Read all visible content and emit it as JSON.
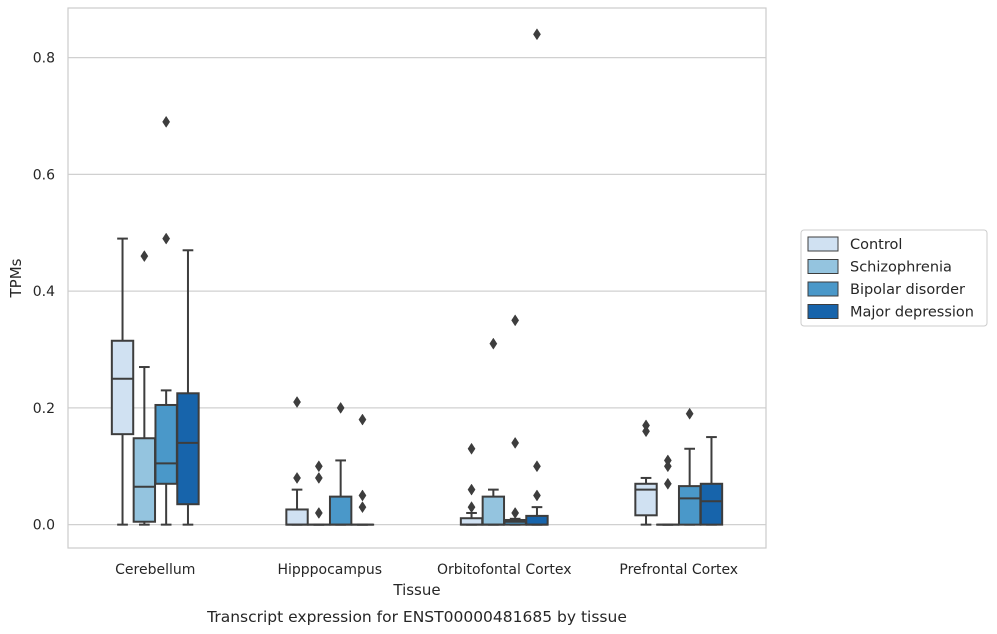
{
  "chart_data": {
    "type": "box",
    "title": "",
    "caption": "Transcript expression for ENST00000481685 by tissue",
    "xlabel": "Tissue",
    "ylabel": "TPMs",
    "ylim": [
      -0.04,
      0.885
    ],
    "yticks": [
      0.0,
      0.2,
      0.4,
      0.6,
      0.8
    ],
    "ytick_labels": [
      "0.0",
      "0.2",
      "0.4",
      "0.6",
      "0.8"
    ],
    "grid": "horizontal",
    "legend_position": "right",
    "categories": [
      "Cerebellum",
      "Hipppocampus",
      "Orbitofontal Cortex",
      "Prefrontal Cortex"
    ],
    "series": [
      {
        "name": "Control",
        "color": "#d0e1f2",
        "boxes": [
          {
            "whislo": 0.0,
            "q1": 0.155,
            "med": 0.25,
            "q3": 0.315,
            "whishi": 0.49,
            "fliers": []
          },
          {
            "whislo": 0.0,
            "q1": 0.0,
            "med": 0.0,
            "q3": 0.026,
            "whishi": 0.06,
            "fliers": [
              0.08,
              0.21
            ]
          },
          {
            "whislo": 0.0,
            "q1": 0.0,
            "med": 0.0,
            "q3": 0.011,
            "whishi": 0.02,
            "fliers": [
              0.03,
              0.06,
              0.13
            ]
          },
          {
            "whislo": 0.0,
            "q1": 0.016,
            "med": 0.06,
            "q3": 0.07,
            "whishi": 0.08,
            "fliers": [
              0.16,
              0.17
            ]
          }
        ]
      },
      {
        "name": "Schizophrenia",
        "color": "#94c4df",
        "boxes": [
          {
            "whislo": 0.0,
            "q1": 0.005,
            "med": 0.065,
            "q3": 0.148,
            "whishi": 0.27,
            "fliers": [
              0.46
            ]
          },
          {
            "whislo": 0.0,
            "q1": 0.0,
            "med": 0.0,
            "q3": 0.0,
            "whishi": 0.0,
            "fliers": [
              0.02,
              0.08,
              0.1
            ]
          },
          {
            "whislo": 0.0,
            "q1": 0.0,
            "med": 0.0,
            "q3": 0.048,
            "whishi": 0.06,
            "fliers": [
              0.31
            ]
          },
          {
            "whislo": 0.0,
            "q1": 0.0,
            "med": 0.0,
            "q3": 0.0,
            "whishi": 0.0,
            "fliers": [
              0.07,
              0.1,
              0.11
            ]
          }
        ]
      },
      {
        "name": "Bipolar disorder",
        "color": "#4a98c9",
        "boxes": [
          {
            "whislo": 0.0,
            "q1": 0.07,
            "med": 0.105,
            "q3": 0.205,
            "whishi": 0.23,
            "fliers": [
              0.49,
              0.69
            ]
          },
          {
            "whislo": 0.0,
            "q1": 0.0,
            "med": 0.0,
            "q3": 0.048,
            "whishi": 0.11,
            "fliers": [
              0.2
            ]
          },
          {
            "whislo": 0.0,
            "q1": 0.0,
            "med": 0.005,
            "q3": 0.008,
            "whishi": 0.01,
            "fliers": [
              0.02,
              0.14,
              0.35
            ]
          },
          {
            "whislo": 0.0,
            "q1": 0.0,
            "med": 0.045,
            "q3": 0.066,
            "whishi": 0.13,
            "fliers": [
              0.19
            ]
          }
        ]
      },
      {
        "name": "Major depression",
        "color": "#1764ab",
        "boxes": [
          {
            "whislo": 0.0,
            "q1": 0.035,
            "med": 0.14,
            "q3": 0.225,
            "whishi": 0.47,
            "fliers": []
          },
          {
            "whislo": 0.0,
            "q1": 0.0,
            "med": 0.0,
            "q3": 0.0,
            "whishi": 0.0,
            "fliers": [
              0.03,
              0.05,
              0.18
            ]
          },
          {
            "whislo": 0.0,
            "q1": 0.0,
            "med": 0.0,
            "q3": 0.015,
            "whishi": 0.03,
            "fliers": [
              0.05,
              0.1,
              0.84
            ]
          },
          {
            "whislo": 0.0,
            "q1": 0.0,
            "med": 0.04,
            "q3": 0.07,
            "whishi": 0.15,
            "fliers": []
          }
        ]
      }
    ]
  }
}
